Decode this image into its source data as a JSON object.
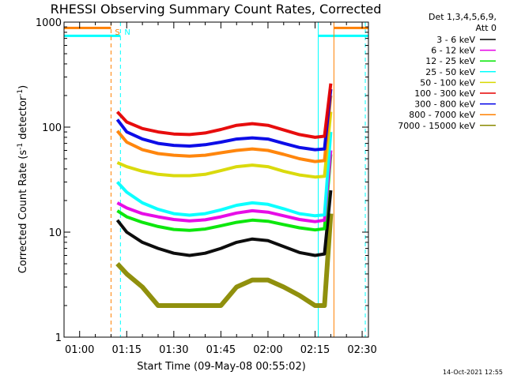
{
  "chart_data": {
    "type": "line",
    "title": "RHESSI Observing Summary Count Rates, Corrected",
    "xlabel": "Start Time (09-May-08 00:55:02)",
    "ylabel_main": "Corrected Count Rate (s",
    "ylabel_sup1": "-1",
    "ylabel_mid": " detector",
    "ylabel_sup2": "-1",
    "ylabel_end": ")",
    "yscale": "log",
    "ylim": [
      1,
      1000
    ],
    "xlim": [
      "00:55:02",
      "02:32:00"
    ],
    "x_ticks": [
      "01:00",
      "01:15",
      "01:30",
      "01:45",
      "02:00",
      "02:15",
      "02:30"
    ],
    "y_ticks": [
      "1",
      "10",
      "100",
      "1000"
    ],
    "grid": false,
    "legend": {
      "placement": "right",
      "header": [
        "Det 1,3,4,5,6,9,",
        "Att 0"
      ]
    },
    "series": [
      {
        "name": "3 - 6 keV",
        "color": "#000000",
        "x": [
          "01:12",
          "01:15",
          "01:20",
          "01:25",
          "01:30",
          "01:35",
          "01:40",
          "01:45",
          "01:50",
          "01:55",
          "02:00",
          "02:05",
          "02:10",
          "02:15",
          "02:18",
          "02:20"
        ],
        "values": [
          13,
          10,
          8,
          7,
          6.3,
          6,
          6.3,
          7,
          8,
          8.6,
          8.3,
          7.3,
          6.4,
          6,
          6.2,
          25
        ]
      },
      {
        "name": "6 - 12 keV",
        "color": "#e600e6",
        "x": [
          "01:12",
          "01:15",
          "01:20",
          "01:25",
          "01:30",
          "01:35",
          "01:40",
          "01:45",
          "01:50",
          "01:55",
          "02:00",
          "02:05",
          "02:10",
          "02:15",
          "02:18",
          "02:20"
        ],
        "values": [
          19,
          17,
          15,
          14,
          13.2,
          12.8,
          13.1,
          14,
          15.2,
          16,
          15.5,
          14.3,
          13.2,
          12.6,
          13,
          60
        ]
      },
      {
        "name": "12 - 25 keV",
        "color": "#00e600",
        "x": [
          "01:12",
          "01:15",
          "01:20",
          "01:25",
          "01:30",
          "01:35",
          "01:40",
          "01:45",
          "01:50",
          "01:55",
          "02:00",
          "02:05",
          "02:10",
          "02:15",
          "02:18",
          "02:20"
        ],
        "values": [
          16,
          14,
          12.4,
          11.3,
          10.6,
          10.4,
          10.7,
          11.5,
          12.4,
          13,
          12.7,
          11.8,
          11,
          10.5,
          10.8,
          55
        ]
      },
      {
        "name": "25 - 50 keV",
        "color": "#00ffff",
        "x": [
          "01:12",
          "01:15",
          "01:20",
          "01:25",
          "01:30",
          "01:35",
          "01:40",
          "01:45",
          "01:50",
          "01:55",
          "02:00",
          "02:05",
          "02:10",
          "02:15",
          "02:18",
          "02:20"
        ],
        "values": [
          30,
          24,
          19,
          16.5,
          15,
          14.5,
          15,
          16.3,
          18,
          19,
          18.4,
          16.7,
          15,
          14.3,
          14.6,
          90
        ]
      },
      {
        "name": "50 - 100 keV",
        "color": "#d8d800",
        "x": [
          "01:12",
          "01:15",
          "01:20",
          "01:25",
          "01:30",
          "01:35",
          "01:40",
          "01:45",
          "01:50",
          "01:55",
          "02:00",
          "02:05",
          "02:10",
          "02:15",
          "02:18",
          "02:20"
        ],
        "values": [
          46,
          42,
          38,
          35.5,
          34.5,
          34.5,
          35.5,
          38.5,
          42,
          43.5,
          42,
          38,
          35,
          33.5,
          34,
          140
        ]
      },
      {
        "name": "100 - 300 keV",
        "color": "#e60000",
        "x": [
          "01:12",
          "01:15",
          "01:20",
          "01:25",
          "01:30",
          "01:35",
          "01:40",
          "01:45",
          "01:50",
          "01:55",
          "02:00",
          "02:05",
          "02:10",
          "02:15",
          "02:18",
          "02:20"
        ],
        "values": [
          140,
          112,
          97,
          90,
          86,
          85,
          88,
          95,
          104,
          108,
          104,
          94,
          85,
          80,
          82,
          260
        ]
      },
      {
        "name": "300 - 800 keV",
        "color": "#0000e6",
        "x": [
          "01:12",
          "01:15",
          "01:20",
          "01:25",
          "01:30",
          "01:35",
          "01:40",
          "01:45",
          "01:50",
          "01:55",
          "02:00",
          "02:05",
          "02:10",
          "02:15",
          "02:18",
          "02:20"
        ],
        "values": [
          118,
          90,
          77,
          70,
          67,
          66,
          68,
          72,
          77,
          79,
          77,
          70,
          64,
          61,
          62,
          230
        ]
      },
      {
        "name": "800 - 7000 keV",
        "color": "#ff8000",
        "x": [
          "01:12",
          "01:15",
          "01:20",
          "01:25",
          "01:30",
          "01:35",
          "01:40",
          "01:45",
          "01:50",
          "01:55",
          "02:00",
          "02:05",
          "02:10",
          "02:15",
          "02:18",
          "02:20"
        ],
        "values": [
          92,
          72,
          61,
          56,
          54,
          53,
          54,
          57,
          60,
          62,
          60,
          55,
          50,
          47,
          48,
          200
        ]
      },
      {
        "name": "7000 - 15000 keV",
        "color": "#8a8a00",
        "x": [
          "01:12",
          "01:15",
          "01:20",
          "01:25",
          "01:30",
          "01:35",
          "01:40",
          "01:45",
          "01:50",
          "01:55",
          "02:00",
          "02:05",
          "02:10",
          "02:15",
          "02:18",
          "02:20"
        ],
        "values": [
          5,
          4,
          3,
          2,
          2,
          2,
          2,
          2,
          3,
          3.5,
          3.5,
          3,
          2.5,
          2,
          2,
          15
        ]
      }
    ],
    "markers": [
      {
        "label": "S",
        "time": "01:10",
        "color": "#ff8000",
        "style": "dashed"
      },
      {
        "label": "N",
        "time": "01:13",
        "color": "#00ffff",
        "style": "dashed"
      },
      {
        "label": "",
        "time": "02:16",
        "color": "#00ffff",
        "style": "solid"
      },
      {
        "label": "",
        "time": "02:21",
        "color": "#ff8000",
        "style": "solid"
      },
      {
        "label": "",
        "time": "02:31",
        "color": "#00ffff",
        "style": "dashed"
      },
      {
        "label": "",
        "time": "00:55:02",
        "color": "#00ffff",
        "style": "solid"
      }
    ],
    "flag_bars": [
      {
        "color": "#ff8000",
        "y_value": 880,
        "segments": [
          [
            "00:55:02",
            "01:10"
          ],
          [
            "02:21",
            "02:32"
          ]
        ]
      },
      {
        "color": "#00ffff",
        "y_value": 740,
        "segments": [
          [
            "00:55:02",
            "01:13"
          ],
          [
            "02:16",
            "02:32"
          ]
        ]
      }
    ]
  },
  "footer": {
    "timestamp": "14-Oct-2021 12:55"
  }
}
